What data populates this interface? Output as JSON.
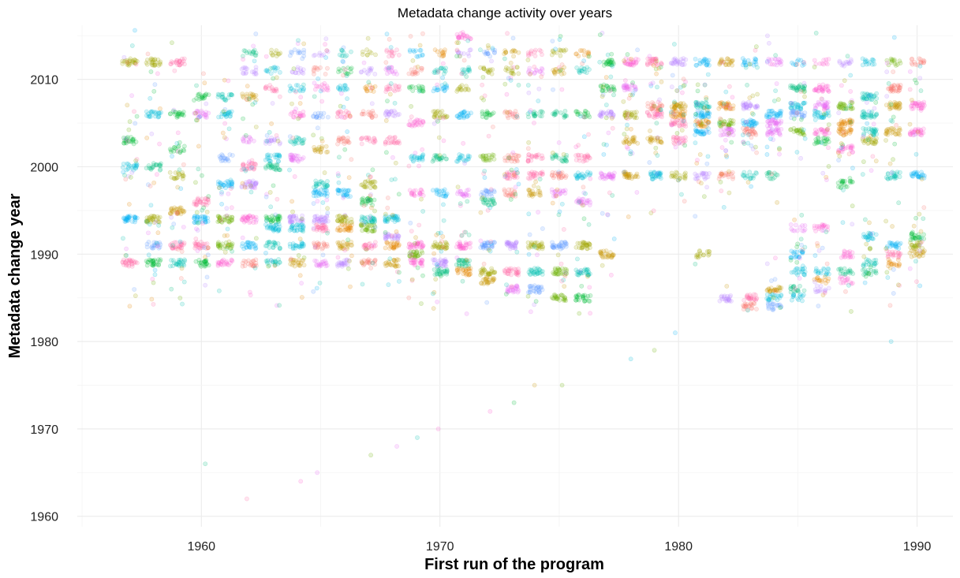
{
  "chart_data": {
    "type": "scatter",
    "title": "Metadata change activity over years",
    "xlabel": "First run of the program",
    "ylabel": "Metadata change year",
    "xlim": [
      1954.8,
      1991.5
    ],
    "ylim": [
      1958.8,
      2016.2
    ],
    "x_ticks": [
      1960,
      1970,
      1980,
      1990
    ],
    "y_ticks": [
      1960,
      1970,
      1980,
      1990,
      2000,
      2010
    ],
    "x_tick_labels": [
      "1960",
      "1970",
      "1980",
      "1990"
    ],
    "y_tick_labels": [
      "1960",
      "1970",
      "1980",
      "1990",
      "2000",
      "2010"
    ],
    "grid": true,
    "legend": "none",
    "point_opacity": 0.18,
    "jitter": "points jittered horizontally within each program year column",
    "palette": [
      "#F8766D",
      "#E58700",
      "#C99800",
      "#A3A500",
      "#6BB100",
      "#00BA38",
      "#00BF7D",
      "#00C0AF",
      "#00BCD8",
      "#00B0F6",
      "#619CFF",
      "#B983FF",
      "#E76BF3",
      "#FD61D1",
      "#FF67A4"
    ],
    "column_bands": [
      {
        "x": 1957,
        "years": [
          1994,
          1989,
          2012,
          2003,
          2000
        ]
      },
      {
        "x": 1958,
        "years": [
          1994,
          1989,
          2012,
          2006,
          2000,
          1991
        ]
      },
      {
        "x": 1959,
        "years": [
          1995,
          1991,
          1989,
          2012,
          2006,
          1999,
          2002
        ]
      },
      {
        "x": 1960,
        "years": [
          1994,
          1996,
          1991,
          1989,
          2006,
          2008
        ]
      },
      {
        "x": 1961,
        "years": [
          1994,
          1998,
          1991,
          1989,
          2006,
          2008,
          2001
        ]
      },
      {
        "x": 1962,
        "years": [
          1994,
          1998,
          2000,
          1991,
          1989,
          2008,
          2011,
          2013,
          2003
        ]
      },
      {
        "x": 1963,
        "years": [
          1994,
          1993,
          2000,
          2001,
          1991,
          1989,
          2003,
          2009,
          2011,
          2013
        ]
      },
      {
        "x": 1964,
        "years": [
          1994,
          1993,
          2001,
          1991,
          1989,
          2003,
          2006,
          2009,
          2011,
          2013
        ]
      },
      {
        "x": 1965,
        "years": [
          1994,
          1993,
          1997,
          1998,
          1991,
          1989,
          2002,
          2006,
          2009,
          2011,
          2013
        ]
      },
      {
        "x": 1966,
        "years": [
          1994,
          1993,
          1997,
          1991,
          1989,
          2003,
          2006,
          2009,
          2011,
          2013
        ]
      },
      {
        "x": 1967,
        "years": [
          1994,
          1993,
          1996,
          1998,
          1991,
          1989,
          2003,
          2006,
          2009,
          2011,
          2013
        ]
      },
      {
        "x": 1968,
        "years": [
          1994,
          1992,
          1991,
          1989,
          2003,
          2006,
          2009,
          2011,
          2013
        ]
      },
      {
        "x": 1969,
        "years": [
          1991,
          1990,
          1989,
          2005,
          2001,
          1997,
          2009,
          2011,
          2013
        ]
      },
      {
        "x": 1970,
        "years": [
          1991,
          1989,
          1988,
          2006,
          2001,
          1997,
          2009,
          2011,
          2013
        ]
      },
      {
        "x": 1971,
        "years": [
          1991,
          1989,
          1988,
          2006,
          2015,
          2001,
          1997,
          2009,
          2011,
          2013
        ]
      },
      {
        "x": 1972,
        "years": [
          1991,
          1988,
          1987,
          1996,
          2001,
          1997,
          2006,
          2011,
          2013
        ]
      },
      {
        "x": 1973,
        "years": [
          1991,
          1988,
          1986,
          1999,
          2001,
          1997,
          2006,
          2011,
          2013
        ]
      },
      {
        "x": 1974,
        "years": [
          1991,
          1988,
          1986,
          1999,
          2001,
          1997,
          2006,
          2011,
          2013
        ]
      },
      {
        "x": 1975,
        "years": [
          1991,
          1988,
          1985,
          1999,
          2001,
          1997,
          2006,
          2011,
          2013
        ]
      },
      {
        "x": 1976,
        "years": [
          1991,
          1988,
          1985,
          1999,
          2001,
          1996,
          2006,
          2011,
          2013
        ]
      },
      {
        "x": 1977,
        "years": [
          1999,
          1990,
          2006,
          2012,
          2009
        ]
      },
      {
        "x": 1978,
        "years": [
          1999,
          2012,
          2006,
          2009,
          2003
        ]
      },
      {
        "x": 1979,
        "years": [
          1999,
          2012,
          2006,
          2007,
          2003
        ]
      },
      {
        "x": 1980,
        "years": [
          2007,
          2006,
          2005,
          2012,
          2003,
          1999
        ]
      },
      {
        "x": 1981,
        "years": [
          2007,
          2006,
          2005,
          2004,
          2012,
          1999,
          1990
        ]
      },
      {
        "x": 1982,
        "years": [
          2007,
          2005,
          2004,
          2012,
          1985,
          1999
        ]
      },
      {
        "x": 1983,
        "years": [
          2007,
          2005,
          2004,
          1985,
          1984,
          2012,
          1999
        ]
      },
      {
        "x": 1984,
        "years": [
          2006,
          2005,
          2004,
          1986,
          1985,
          1984,
          2012,
          1999
        ]
      },
      {
        "x": 1985,
        "years": [
          2009,
          2007,
          2006,
          2004,
          1990,
          1988,
          1986,
          1985,
          1993,
          2012
        ]
      },
      {
        "x": 1986,
        "years": [
          2009,
          2007,
          2006,
          2004,
          2003,
          1993,
          1988,
          1987,
          1986,
          2012
        ]
      },
      {
        "x": 1987,
        "years": [
          2007,
          2005,
          2004,
          2002,
          1998,
          1990,
          1988,
          1987,
          2012
        ]
      },
      {
        "x": 1988,
        "years": [
          2008,
          2006,
          2004,
          2003,
          1992,
          1989,
          1988,
          2012
        ]
      },
      {
        "x": 1989,
        "years": [
          2009,
          2007,
          2004,
          1999,
          1991,
          1990,
          1989,
          2012
        ]
      },
      {
        "x": 1990,
        "years": [
          2007,
          2004,
          1999,
          1992,
          1991,
          1990,
          2012
        ]
      }
    ],
    "outliers": [
      {
        "x": 1962,
        "y": 1962
      },
      {
        "x": 1960,
        "y": 1966
      },
      {
        "x": 1964,
        "y": 1964
      },
      {
        "x": 1965,
        "y": 1965
      },
      {
        "x": 1967,
        "y": 1967
      },
      {
        "x": 1968,
        "y": 1968
      },
      {
        "x": 1969,
        "y": 1969
      },
      {
        "x": 1970,
        "y": 1970
      },
      {
        "x": 1972,
        "y": 1972
      },
      {
        "x": 1973,
        "y": 1973
      },
      {
        "x": 1974,
        "y": 1975
      },
      {
        "x": 1975,
        "y": 1975
      },
      {
        "x": 1978,
        "y": 1978
      },
      {
        "x": 1979,
        "y": 1979
      },
      {
        "x": 1980,
        "y": 1981
      },
      {
        "x": 1989,
        "y": 1980
      }
    ]
  }
}
